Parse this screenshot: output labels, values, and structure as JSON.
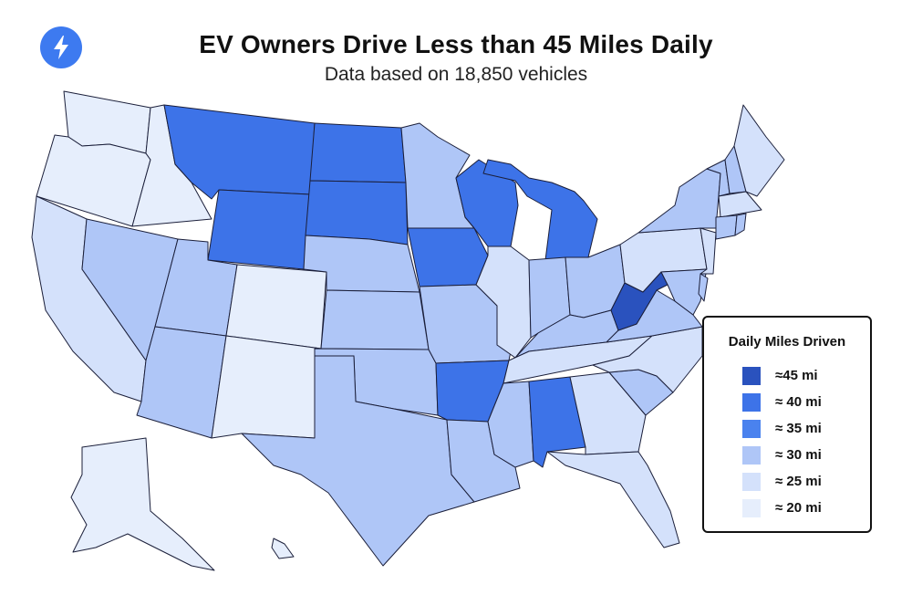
{
  "header": {
    "title": "EV Owners Drive Less than 45 Miles Daily",
    "subtitle": "Data based on 18,850 vehicles",
    "logo_icon": "lightning-bolt-icon"
  },
  "colors": {
    "level_45": "#2a52be",
    "level_40": "#3d73e8",
    "level_35": "#4a82ee",
    "level_30": "#afc6f7",
    "level_25": "#d4e1fb",
    "level_20": "#e6eefc",
    "border": "#1b1f3a",
    "logo": "#3d7af0"
  },
  "legend": {
    "title": "Daily Miles Driven",
    "items": [
      {
        "label": "≈45 mi",
        "level": "level_45"
      },
      {
        "label": "≈ 40 mi",
        "level": "level_40"
      },
      {
        "label": "≈ 35 mi",
        "level": "level_35"
      },
      {
        "label": "≈ 30 mi",
        "level": "level_30"
      },
      {
        "label": "≈ 25 mi",
        "level": "level_25"
      },
      {
        "label": "≈ 20 mi",
        "level": "level_20"
      }
    ]
  },
  "states": {
    "WA": "level_20",
    "OR": "level_20",
    "CA": "level_25",
    "NV": "level_30",
    "ID": "level_20",
    "MT": "level_40",
    "WY": "level_40",
    "UT": "level_30",
    "AZ": "level_30",
    "CO": "level_20",
    "NM": "level_20",
    "ND": "level_40",
    "SD": "level_40",
    "NE": "level_30",
    "KS": "level_30",
    "OK": "level_30",
    "TX": "level_30",
    "MN": "level_30",
    "IA": "level_40",
    "MO": "level_30",
    "AR": "level_40",
    "LA": "level_30",
    "WI": "level_40",
    "IL": "level_25",
    "MI": "level_40",
    "IN": "level_30",
    "OH": "level_30",
    "KY": "level_30",
    "TN": "level_25",
    "MS": "level_30",
    "AL": "level_40",
    "GA": "level_25",
    "FL": "level_25",
    "SC": "level_30",
    "NC": "level_25",
    "VA": "level_30",
    "WV": "level_45",
    "PA": "level_25",
    "NY": "level_30",
    "NJ": "level_25",
    "DE": "level_30",
    "MD": "level_30",
    "VT": "level_30",
    "NH": "level_30",
    "ME": "level_25",
    "MA": "level_25",
    "CT": "level_30",
    "RI": "level_30",
    "AK": "level_20",
    "HI": "level_20"
  }
}
